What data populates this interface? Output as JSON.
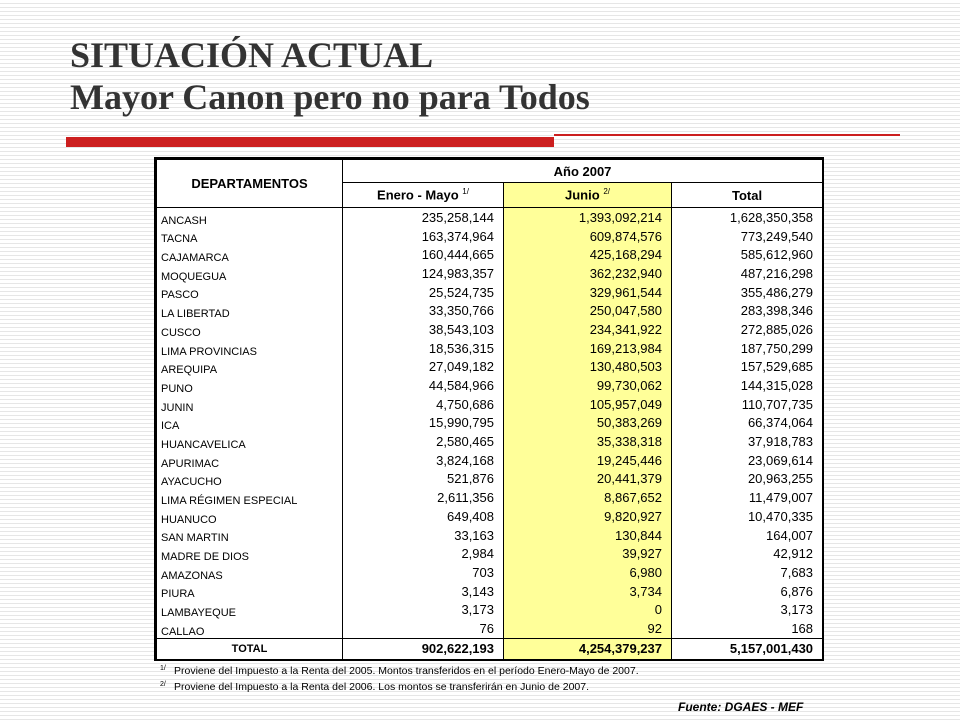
{
  "title_line1": "SITUACIÓN ACTUAL",
  "title_line2": "Mayor Canon pero no para Todos",
  "table": {
    "header_dept": "DEPARTAMENTOS",
    "header_group": "Año 2007",
    "col_enero": "Enero - Mayo",
    "col_enero_note": "1/",
    "col_junio": "Junio",
    "col_junio_note": "2/",
    "col_total": "Total",
    "rows": [
      {
        "dept": "ANCASH",
        "enero": "235,258,144",
        "junio": "1,393,092,214",
        "total": "1,628,350,358"
      },
      {
        "dept": "TACNA",
        "enero": "163,374,964",
        "junio": "609,874,576",
        "total": "773,249,540"
      },
      {
        "dept": "CAJAMARCA",
        "enero": "160,444,665",
        "junio": "425,168,294",
        "total": "585,612,960"
      },
      {
        "dept": "MOQUEGUA",
        "enero": "124,983,357",
        "junio": "362,232,940",
        "total": "487,216,298"
      },
      {
        "dept": "PASCO",
        "enero": "25,524,735",
        "junio": "329,961,544",
        "total": "355,486,279"
      },
      {
        "dept": "LA LIBERTAD",
        "enero": "33,350,766",
        "junio": "250,047,580",
        "total": "283,398,346"
      },
      {
        "dept": "CUSCO",
        "enero": "38,543,103",
        "junio": "234,341,922",
        "total": "272,885,026"
      },
      {
        "dept": "LIMA PROVINCIAS",
        "enero": "18,536,315",
        "junio": "169,213,984",
        "total": "187,750,299"
      },
      {
        "dept": "AREQUIPA",
        "enero": "27,049,182",
        "junio": "130,480,503",
        "total": "157,529,685"
      },
      {
        "dept": "PUNO",
        "enero": "44,584,966",
        "junio": "99,730,062",
        "total": "144,315,028"
      },
      {
        "dept": "JUNIN",
        "enero": "4,750,686",
        "junio": "105,957,049",
        "total": "110,707,735"
      },
      {
        "dept": "ICA",
        "enero": "15,990,795",
        "junio": "50,383,269",
        "total": "66,374,064"
      },
      {
        "dept": "HUANCAVELICA",
        "enero": "2,580,465",
        "junio": "35,338,318",
        "total": "37,918,783"
      },
      {
        "dept": "APURIMAC",
        "enero": "3,824,168",
        "junio": "19,245,446",
        "total": "23,069,614"
      },
      {
        "dept": "AYACUCHO",
        "enero": "521,876",
        "junio": "20,441,379",
        "total": "20,963,255"
      },
      {
        "dept": "LIMA RÉGIMEN ESPECIAL",
        "enero": "2,611,356",
        "junio": "8,867,652",
        "total": "11,479,007"
      },
      {
        "dept": "HUANUCO",
        "enero": "649,408",
        "junio": "9,820,927",
        "total": "10,470,335"
      },
      {
        "dept": "SAN MARTIN",
        "enero": "33,163",
        "junio": "130,844",
        "total": "164,007"
      },
      {
        "dept": "MADRE DE DIOS",
        "enero": "2,984",
        "junio": "39,927",
        "total": "42,912"
      },
      {
        "dept": "AMAZONAS",
        "enero": "703",
        "junio": "6,980",
        "total": "7,683"
      },
      {
        "dept": "PIURA",
        "enero": "3,143",
        "junio": "3,734",
        "total": "6,876"
      },
      {
        "dept": "LAMBAYEQUE",
        "enero": "3,173",
        "junio": "0",
        "total": "3,173"
      },
      {
        "dept": "CALLAO",
        "enero": "76",
        "junio": "92",
        "total": "168"
      }
    ],
    "total_row": {
      "dept": "TOTAL",
      "enero": "902,622,193",
      "junio": "4,254,379,237",
      "total": "5,157,001,430"
    }
  },
  "notes": [
    {
      "ref": "1/",
      "text": "Proviene del Impuesto a la Renta del 2005. Montos transferidos en el período Enero-Mayo de 2007."
    },
    {
      "ref": "2/",
      "text": "Proviene del Impuesto a la Renta del 2006. Los montos se transferirán en Junio de 2007."
    }
  ],
  "source": "Fuente: DGAES - MEF",
  "colors": {
    "title": "#333333",
    "accent_red": "#cc1f1f",
    "junio_highlight": "#ffff99"
  }
}
